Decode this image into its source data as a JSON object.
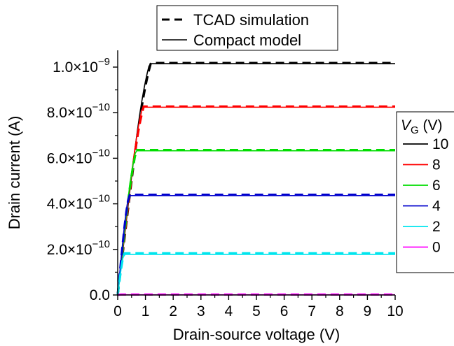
{
  "chart_data": {
    "type": "line",
    "title": "",
    "xlabel": "Drain-source voltage (V)",
    "ylabel": "Drain current (A)",
    "xlim": [
      0,
      10
    ],
    "ylim": [
      0,
      1.1e-09
    ],
    "grid": false,
    "x_ticks": [
      {
        "value": 0,
        "label": "0"
      },
      {
        "value": 1,
        "label": "1"
      },
      {
        "value": 2,
        "label": "2"
      },
      {
        "value": 3,
        "label": "3"
      },
      {
        "value": 4,
        "label": "4"
      },
      {
        "value": 5,
        "label": "5"
      },
      {
        "value": 6,
        "label": "6"
      },
      {
        "value": 7,
        "label": "7"
      },
      {
        "value": 8,
        "label": "8"
      },
      {
        "value": 9,
        "label": "9"
      },
      {
        "value": 10,
        "label": "10"
      }
    ],
    "y_ticks": [
      {
        "value": 0,
        "mantissa": "0.0",
        "exponent": ""
      },
      {
        "value": 2e-10,
        "mantissa": "2.0×10",
        "exponent": "−10"
      },
      {
        "value": 4e-10,
        "mantissa": "4.0×10",
        "exponent": "−10"
      },
      {
        "value": 6e-10,
        "mantissa": "6.0×10",
        "exponent": "−10"
      },
      {
        "value": 8e-10,
        "mantissa": "8.0×10",
        "exponent": "−10"
      },
      {
        "value": 1e-09,
        "mantissa": "1.0×10",
        "exponent": "−9"
      }
    ],
    "style_legend": {
      "placement": "top-center",
      "entries": [
        {
          "label": "TCAD simulation",
          "style": "dashed"
        },
        {
          "label": "Compact model",
          "style": "solid"
        }
      ]
    },
    "vg_legend": {
      "placement": "right",
      "title_symbol": "V",
      "title_subscript": "G",
      "title_unit": " (V)"
    },
    "series": [
      {
        "name": "10",
        "vg": 10,
        "color": "#000000",
        "isat": 1.015e-09,
        "vsat": 1.15,
        "tcad_isat": 1.018e-09
      },
      {
        "name": "8",
        "vg": 8,
        "color": "#ff0000",
        "isat": 8.24e-10,
        "vsat": 0.9,
        "tcad_isat": 8.27e-10
      },
      {
        "name": "6",
        "vg": 6,
        "color": "#00dd00",
        "isat": 6.33e-10,
        "vsat": 0.65,
        "tcad_isat": 6.36e-10
      },
      {
        "name": "4",
        "vg": 4,
        "color": "#0000cc",
        "isat": 4.36e-10,
        "vsat": 0.4,
        "tcad_isat": 4.4e-10
      },
      {
        "name": "2",
        "vg": 2,
        "color": "#00e5ee",
        "isat": 1.78e-10,
        "vsat": 0.22,
        "tcad_isat": 1.83e-10
      },
      {
        "name": "0",
        "vg": 0,
        "color": "#ff00ff",
        "isat": 1e-12,
        "vsat": 0.1,
        "tcad_isat": 2e-12
      }
    ]
  }
}
